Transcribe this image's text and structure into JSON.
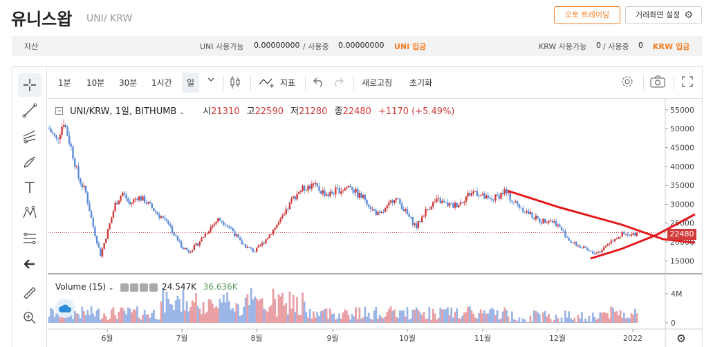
{
  "header": {
    "title": "유니스왑",
    "symbol": "UNI/ KRW",
    "auto_trading_label": "오토 트레이딩",
    "screen_setting_label": "거래화면 설정"
  },
  "asset_bar": {
    "label": "자산",
    "uni_available_label": "UNI 사용가능",
    "uni_available": "0.00000000",
    "uni_in_use_label": "/ 사용중",
    "uni_in_use": "0.00000000",
    "uni_deposit_label": "UNI 입금",
    "krw_available_label": "KRW 사용가능",
    "krw_available": "0",
    "krw_in_use_label": "/ 사용중",
    "krw_in_use": "0",
    "krw_deposit_label": "KRW 입금"
  },
  "toolbar": {
    "interval_1m": "1분",
    "interval_10m": "10분",
    "interval_30m": "30분",
    "interval_1h": "1시간",
    "interval_day": "일",
    "indicator_label": "지표",
    "refresh_label": "새로고침",
    "reset_label": "초기화"
  },
  "legend": {
    "pair": "UNI/KRW, 1일, BITHUMB",
    "open_label": "시",
    "open": "21310",
    "high_label": "고",
    "high": "22590",
    "low_label": "저",
    "low": "21280",
    "close_label": "종",
    "close": "22480",
    "change": "+1170 (+5.49%)"
  },
  "volume_legend": {
    "label": "Volume (15)",
    "value1": "24.547K",
    "value2": "36.636K"
  },
  "colors": {
    "up": "#d23b3b",
    "down": "#5b8bd8",
    "accent": "#f57c1f",
    "trendline": "#e5191c"
  },
  "chart_data": {
    "type": "candlestick",
    "price_axis_ticks": [
      "55000",
      "50000",
      "45000",
      "40000",
      "35000",
      "30000",
      "25000",
      "20000",
      "15000"
    ],
    "volume_axis_ticks": [
      "4M",
      "0"
    ],
    "x_tick_labels": [
      "6월",
      "7월",
      "8월",
      "9월",
      "10월",
      "11월",
      "12월",
      "2022"
    ],
    "current_price_label": "22480",
    "ylim": [
      12500,
      57000
    ],
    "series_close": [
      50000,
      47000,
      52000,
      45000,
      37000,
      33000,
      24000,
      16500,
      23000,
      30000,
      33000,
      30000,
      32000,
      31000,
      29000,
      27000,
      26000,
      22000,
      19000,
      17500,
      19000,
      21500,
      24000,
      26000,
      25000,
      23000,
      20000,
      18500,
      17500,
      19500,
      22000,
      24500,
      27000,
      31000,
      33500,
      34500,
      35000,
      33500,
      32500,
      33500,
      34000,
      35000,
      32500,
      31500,
      28500,
      27000,
      29000,
      32000,
      29500,
      26500,
      24000,
      27500,
      30000,
      31000,
      30000,
      29500,
      30500,
      32500,
      33500,
      32000,
      31000,
      32000,
      33500,
      31000,
      29500,
      28000,
      26500,
      25500,
      26000,
      25000,
      22500,
      20000,
      19000,
      18000,
      17000,
      17500,
      19500,
      21000,
      22000,
      21500,
      22480
    ]
  }
}
